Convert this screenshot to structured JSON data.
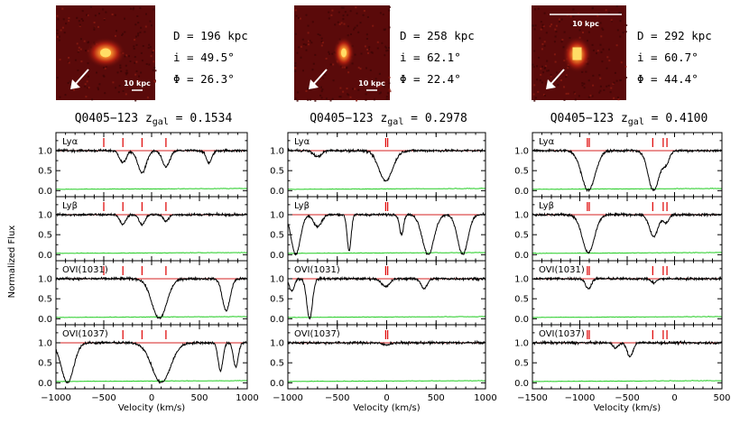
{
  "colors": {
    "spectrum": "#000000",
    "continuum_fit": "#d42020",
    "error_spectrum": "#22cc22",
    "component_tick": "#e01010",
    "image_background": "#5a0a0a",
    "image_galaxy": "#ffdd66",
    "arrow": "#ffffff"
  },
  "ylabel": "Normalized Flux",
  "xlabel": "Velocity  (km/s)",
  "panels": [
    {
      "title": "Q0405−123 z",
      "sub": "gal",
      "zval": " = 0.1534",
      "info": [
        "D = 196 kpc",
        "i = 49.5°",
        "Φ = 26.3°"
      ],
      "scalebar_label": "10 kpc",
      "xlim": [
        -1000,
        1000
      ],
      "xticks": [
        -1000,
        -500,
        0,
        500,
        1000
      ],
      "xtick_labels": [
        "−1000",
        "−500",
        "0",
        "500",
        "1000"
      ],
      "ticks": [
        -500,
        -300,
        -100,
        150
      ],
      "ions": [
        {
          "label": "Lyα",
          "ticks": [
            -500,
            -300,
            -100,
            150
          ],
          "lines": [
            {
              "v": -300,
              "d": 0.3,
              "w": 35
            },
            {
              "v": -100,
              "d": 0.55,
              "w": 45
            },
            {
              "v": 150,
              "d": 0.4,
              "w": 40
            },
            {
              "v": 600,
              "d": 0.3,
              "w": 30
            }
          ],
          "noise": 0.03
        },
        {
          "label": "Lyβ",
          "ticks": [
            -500,
            -300,
            -100,
            150
          ],
          "lines": [
            {
              "v": -300,
              "d": 0.25,
              "w": 30
            },
            {
              "v": -100,
              "d": 0.25,
              "w": 30
            },
            {
              "v": 150,
              "d": 0.15,
              "w": 30
            }
          ],
          "noise": 0.03
        },
        {
          "label": "OVI(1031)",
          "ticks": [
            -500,
            -300,
            -100,
            150
          ],
          "lines": [
            {
              "v": 80,
              "d": 1.0,
              "w": 60
            },
            {
              "v": 780,
              "d": 0.8,
              "w": 40
            }
          ],
          "noise": 0.03
        },
        {
          "label": "OVI(1037)",
          "ticks": [
            -300,
            -100,
            150
          ],
          "lines": [
            {
              "v": -880,
              "d": 1.0,
              "w": 50
            },
            {
              "v": 100,
              "d": 1.0,
              "w": 75
            },
            {
              "v": 720,
              "d": 0.7,
              "w": 25
            },
            {
              "v": 880,
              "d": 0.6,
              "w": 25
            }
          ],
          "noise": 0.03
        }
      ]
    },
    {
      "title": "Q0405−123 z",
      "sub": "gal",
      "zval": " = 0.2978",
      "info": [
        "D = 258 kpc",
        "i = 62.1°",
        "Φ = 22.4°"
      ],
      "scalebar_label": "10 kpc",
      "xlim": [
        -1000,
        1000
      ],
      "xticks": [
        -1000,
        -500,
        0,
        500,
        1000
      ],
      "xtick_labels": [
        "−1000",
        "−500",
        "0",
        "500",
        "1000"
      ],
      "ticks": [
        -10,
        10
      ],
      "ions": [
        {
          "label": "Lyα",
          "ticks": [
            -10,
            10
          ],
          "lines": [
            {
              "v": -700,
              "d": 0.15,
              "w": 40
            },
            {
              "v": -10,
              "d": 0.75,
              "w": 70
            }
          ],
          "noise": 0.03
        },
        {
          "label": "Lyβ",
          "ticks": [
            -10,
            10
          ],
          "lines": [
            {
              "v": -920,
              "d": 1.0,
              "w": 35
            },
            {
              "v": -380,
              "d": 0.9,
              "w": 20
            },
            {
              "v": 150,
              "d": 0.5,
              "w": 20
            },
            {
              "v": 420,
              "d": 1.0,
              "w": 45
            },
            {
              "v": 770,
              "d": 1.0,
              "w": 40
            },
            {
              "v": -700,
              "d": 0.3,
              "w": 40
            }
          ],
          "noise": 0.03
        },
        {
          "label": "OVI(1031)",
          "ticks": [
            -10,
            10
          ],
          "lines": [
            {
              "v": -960,
              "d": 0.3,
              "w": 25
            },
            {
              "v": -780,
              "d": 1.0,
              "w": 22
            },
            {
              "v": -10,
              "d": 0.2,
              "w": 40
            },
            {
              "v": 380,
              "d": 0.25,
              "w": 30
            }
          ],
          "noise": 0.03
        },
        {
          "label": "OVI(1037)",
          "ticks": [
            -10,
            10
          ],
          "lines": [
            {
              "v": -10,
              "d": 0.05,
              "w": 40
            }
          ],
          "noise": 0.03
        }
      ]
    },
    {
      "title": "Q0405−123 z",
      "sub": "gal",
      "zval": " = 0.4100",
      "info": [
        "D = 292 kpc",
        "i = 60.7°",
        "Φ = 44.4°"
      ],
      "scalebar_label": "10 kpc",
      "xlim": [
        -1500,
        500
      ],
      "xticks": [
        -1500,
        -1000,
        -500,
        0,
        500
      ],
      "xtick_labels": [
        "−1500",
        "−1000",
        "−500",
        "0",
        "500"
      ],
      "ticks": [
        -920,
        -900,
        -230,
        -120,
        -80
      ],
      "ions": [
        {
          "label": "Lyα",
          "ticks": [
            -920,
            -900,
            -230,
            -120,
            -80
          ],
          "lines": [
            {
              "v": -910,
              "d": 1.0,
              "w": 55
            },
            {
              "v": -220,
              "d": 1.0,
              "w": 45
            },
            {
              "v": -90,
              "d": 0.3,
              "w": 35
            }
          ],
          "noise": 0.03
        },
        {
          "label": "Lyβ",
          "ticks": [
            -920,
            -900,
            -230,
            -120,
            -80
          ],
          "lines": [
            {
              "v": -910,
              "d": 0.95,
              "w": 50
            },
            {
              "v": -220,
              "d": 0.55,
              "w": 45
            },
            {
              "v": -90,
              "d": 0.2,
              "w": 30
            }
          ],
          "noise": 0.03
        },
        {
          "label": "OVI(1031)",
          "ticks": [
            -920,
            -900,
            -230,
            -120,
            -80
          ],
          "lines": [
            {
              "v": -910,
              "d": 0.25,
              "w": 30
            },
            {
              "v": -220,
              "d": 0.1,
              "w": 30
            }
          ],
          "noise": 0.03
        },
        {
          "label": "OVI(1037)",
          "ticks": [
            -920,
            -900,
            -230,
            -120,
            -80
          ],
          "lines": [
            {
              "v": -470,
              "d": 0.35,
              "w": 30
            },
            {
              "v": -620,
              "d": 0.12,
              "w": 30
            }
          ],
          "noise": 0.03
        }
      ]
    }
  ],
  "ytick_labels": [
    "0.0",
    "0.5",
    "1.0"
  ],
  "chart_data": {
    "type": "line",
    "ylabel": "Normalized Flux",
    "xlabel": "Velocity  (km/s)",
    "ylim": [
      -0.15,
      1.45
    ],
    "yticks": [
      0.0,
      0.5,
      1.0
    ],
    "continuum": 1.0,
    "subplots": [
      {
        "title": "Q0405−123 z_gal = 0.1534",
        "xlim": [
          -1000,
          1000
        ],
        "rows": [
          "Lyα",
          "Lyβ",
          "OVI(1031)",
          "OVI(1037)"
        ]
      },
      {
        "title": "Q0405−123 z_gal = 0.2978",
        "xlim": [
          -1000,
          1000
        ],
        "rows": [
          "Lyα",
          "Lyβ",
          "OVI(1031)",
          "OVI(1037)"
        ]
      },
      {
        "title": "Q0405−123 z_gal = 0.4100",
        "xlim": [
          -1500,
          500
        ],
        "rows": [
          "Lyα",
          "Lyβ",
          "OVI(1031)",
          "OVI(1037)"
        ]
      }
    ]
  }
}
